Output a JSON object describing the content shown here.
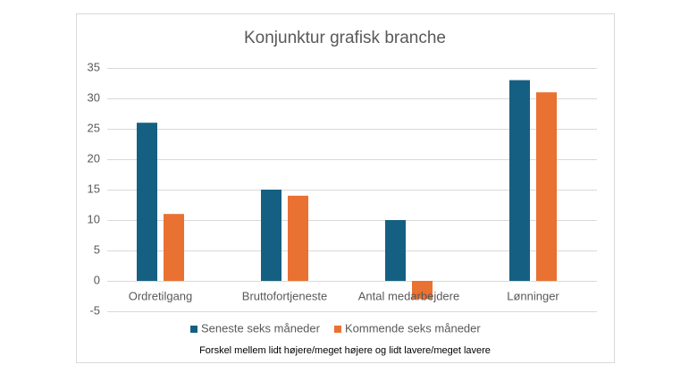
{
  "chart_data": {
    "type": "bar",
    "title": "Konjunktur grafisk branche",
    "categories": [
      "Ordretilgang",
      "Bruttofortjeneste",
      "Antal medarbejdere",
      "Lønninger"
    ],
    "series": [
      {
        "name": "Seneste seks måneder",
        "color": "#156082",
        "values": [
          26,
          15,
          10,
          33
        ]
      },
      {
        "name": "Kommende seks måneder",
        "color": "#e97132",
        "values": [
          11,
          14,
          -3,
          31
        ]
      }
    ],
    "ylim": [
      -5,
      35
    ],
    "yticks": [
      -5,
      0,
      5,
      10,
      15,
      20,
      25,
      30,
      35
    ],
    "grid": true,
    "legend": "bottom",
    "note": "Forskel mellem lidt højere/meget højere og lidt lavere/meget lavere"
  }
}
